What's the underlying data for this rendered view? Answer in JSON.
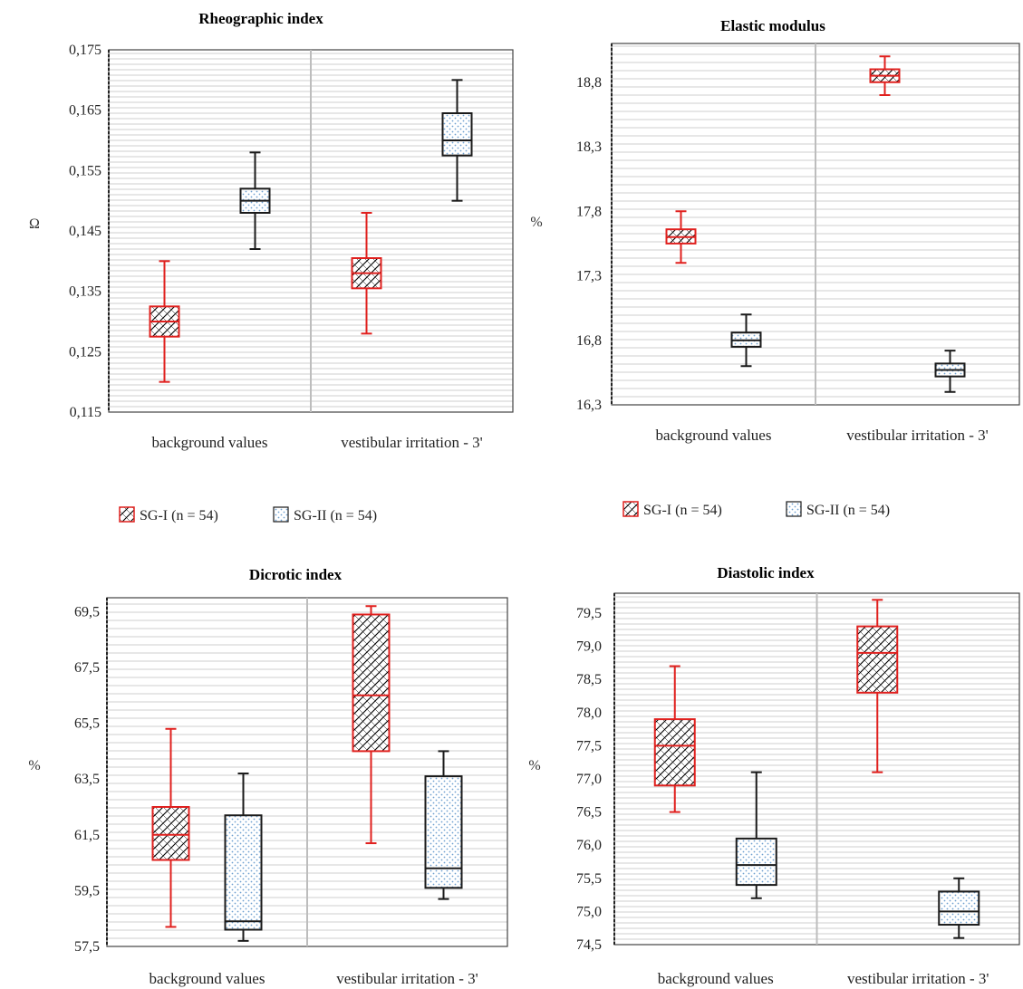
{
  "legend": {
    "sg1_label": "SG-I (n = 54)",
    "sg2_label": "SG-II (n = 54)"
  },
  "colors": {
    "sg1": "#e0201e",
    "sg2": "#1a1a1a",
    "sg2_dots": "#6fa0d0",
    "grid": "#cfcfcf",
    "divider": "#bdbdbd"
  },
  "chart_data": [
    {
      "type": "box",
      "title": "Rheographic index",
      "ylabel": "Ω",
      "ylim": [
        0.115,
        0.175
      ],
      "yticks": [
        "0,115",
        "0,125",
        "0,135",
        "0,145",
        "0,155",
        "0,165",
        "0,175"
      ],
      "yticks_values": [
        0.115,
        0.125,
        0.135,
        0.145,
        0.155,
        0.165,
        0.175
      ],
      "categories": [
        "background values",
        "vestibular irritation - 3'"
      ],
      "series": [
        {
          "name": "SG-I (n = 54)",
          "boxes": [
            {
              "min": 0.12,
              "q1": 0.1275,
              "median": 0.13,
              "q3": 0.1325,
              "max": 0.14
            },
            {
              "min": 0.128,
              "q1": 0.1355,
              "median": 0.138,
              "q3": 0.1405,
              "max": 0.148
            }
          ]
        },
        {
          "name": "SG-II (n = 54)",
          "boxes": [
            {
              "min": 0.142,
              "q1": 0.148,
              "median": 0.15,
              "q3": 0.152,
              "max": 0.158
            },
            {
              "min": 0.15,
              "q1": 0.1575,
              "median": 0.16,
              "q3": 0.1645,
              "max": 0.17
            }
          ]
        }
      ]
    },
    {
      "type": "box",
      "title": "Elastic modulus",
      "ylabel": "%",
      "ylim": [
        16.3,
        19.1
      ],
      "yticks": [
        "16,3",
        "16,8",
        "17,3",
        "17,8",
        "18,3",
        "18,8"
      ],
      "yticks_values": [
        16.3,
        16.8,
        17.3,
        17.8,
        18.3,
        18.8
      ],
      "categories": [
        "background values",
        "vestibular irritation - 3'"
      ],
      "series": [
        {
          "name": "SG-I (n = 54)",
          "boxes": [
            {
              "min": 17.4,
              "q1": 17.55,
              "median": 17.6,
              "q3": 17.66,
              "max": 17.8
            },
            {
              "min": 18.7,
              "q1": 18.8,
              "median": 18.85,
              "q3": 18.9,
              "max": 19.0
            }
          ]
        },
        {
          "name": "SG-II (n = 54)",
          "boxes": [
            {
              "min": 16.6,
              "q1": 16.75,
              "median": 16.8,
              "q3": 16.86,
              "max": 17.0
            },
            {
              "min": 16.4,
              "q1": 16.52,
              "median": 16.57,
              "q3": 16.62,
              "max": 16.72
            }
          ]
        }
      ]
    },
    {
      "type": "box",
      "title": "Dicrotic index",
      "ylabel": "%",
      "ylim": [
        57.5,
        70.0
      ],
      "yticks": [
        "57,5",
        "59,5",
        "61,5",
        "63,5",
        "65,5",
        "67,5",
        "69,5"
      ],
      "yticks_values": [
        57.5,
        59.5,
        61.5,
        63.5,
        65.5,
        67.5,
        69.5
      ],
      "categories": [
        "background values",
        "vestibular irritation - 3'"
      ],
      "series": [
        {
          "name": "SG-I (n = 54)",
          "boxes": [
            {
              "min": 58.2,
              "q1": 60.6,
              "median": 61.5,
              "q3": 62.5,
              "max": 65.3
            },
            {
              "min": 61.2,
              "q1": 64.5,
              "median": 66.5,
              "q3": 69.4,
              "max": 69.7
            }
          ]
        },
        {
          "name": "SG-II (n = 54)",
          "boxes": [
            {
              "min": 57.7,
              "q1": 58.1,
              "median": 58.4,
              "q3": 62.2,
              "max": 63.7
            },
            {
              "min": 59.2,
              "q1": 59.6,
              "median": 60.3,
              "q3": 63.6,
              "max": 64.5
            }
          ]
        }
      ]
    },
    {
      "type": "box",
      "title": "Diastolic index",
      "ylabel": "%",
      "ylim": [
        74.5,
        79.8
      ],
      "yticks": [
        "74,5",
        "75,0",
        "75,5",
        "76,0",
        "76,5",
        "77,0",
        "77,5",
        "78,0",
        "78,5",
        "79,0",
        "79,5"
      ],
      "yticks_values": [
        74.5,
        75.0,
        75.5,
        76.0,
        76.5,
        77.0,
        77.5,
        78.0,
        78.5,
        79.0,
        79.5
      ],
      "categories": [
        "background values",
        "vestibular irritation - 3'"
      ],
      "series": [
        {
          "name": "SG-I (n = 54)",
          "boxes": [
            {
              "min": 76.5,
              "q1": 76.9,
              "median": 77.5,
              "q3": 77.9,
              "max": 78.7
            },
            {
              "min": 77.1,
              "q1": 78.3,
              "median": 78.9,
              "q3": 79.3,
              "max": 79.7
            }
          ]
        },
        {
          "name": "SG-II (n = 54)",
          "boxes": [
            {
              "min": 75.2,
              "q1": 75.4,
              "median": 75.7,
              "q3": 76.1,
              "max": 77.1
            },
            {
              "min": 74.6,
              "q1": 74.8,
              "median": 75.0,
              "q3": 75.3,
              "max": 75.5
            }
          ]
        }
      ]
    }
  ]
}
